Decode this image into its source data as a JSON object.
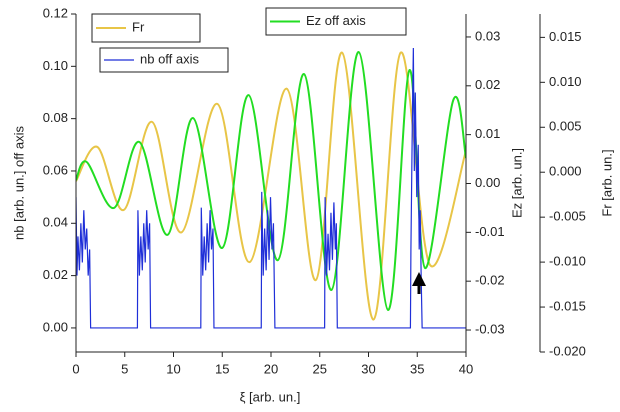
{
  "chart_data": {
    "type": "line",
    "xlabel": "ξ [arb. un.]",
    "ylabel": "nb [arb. un.] off axis",
    "y2label": "Ez [arb. un.]",
    "y3label": "Fr [arb. un.]",
    "xlim": [
      0,
      40
    ],
    "xticks": [
      0,
      5,
      10,
      15,
      20,
      25,
      30,
      35,
      40
    ],
    "ylim": [
      -0.0092,
      0.12
    ],
    "yticks": [
      {
        "value": 0,
        "label": "0.00"
      },
      0.02,
      0.04,
      0.06,
      0.08,
      {
        "value": 0.1,
        "label": "0.10"
      },
      0.12
    ],
    "y2lim": [
      -0.0345,
      0.0347
    ],
    "y2ticks": [
      -0.03,
      -0.02,
      -0.01,
      {
        "value": 0,
        "label": "0.00"
      },
      0.01,
      0.02,
      0.03
    ],
    "y3lim": [
      -0.02,
      0.0176
    ],
    "y3ticks": [
      {
        "value": -0.02,
        "label": "-0.020"
      },
      -0.015,
      {
        "value": -0.01,
        "label": "-0.010"
      },
      -0.005,
      {
        "value": 0,
        "label": "0.000"
      },
      0.005,
      {
        "value": 0.01,
        "label": "0.010"
      },
      0.015
    ],
    "series": [
      {
        "name": "Fr",
        "color": "#e8c547",
        "axis": "y3",
        "smooth": true,
        "x": [
          0,
          2.2,
          4.9,
          7.8,
          10.8,
          14.5,
          17.8,
          21.6,
          24.6,
          27.3,
          30.5,
          33.3,
          36.3,
          40
        ],
        "values": [
          -0.001,
          0.0028,
          -0.0042,
          0.0056,
          -0.0067,
          0.0076,
          -0.01,
          0.0093,
          -0.012,
          0.0133,
          -0.0164,
          0.0133,
          -0.0103,
          0.0024
        ]
      },
      {
        "name": "Ez off axis",
        "color": "#22dd22",
        "axis": "y2",
        "smooth": true,
        "x": [
          0,
          1.1,
          3.9,
          6.5,
          9.4,
          12.0,
          15.0,
          17.7,
          20.7,
          23.4,
          26.2,
          29.0,
          32.0,
          34.2,
          35.8,
          38.7,
          40
        ],
        "values": [
          0.0007,
          0.0044,
          -0.005,
          0.0085,
          -0.0105,
          0.0134,
          -0.0132,
          0.0181,
          -0.0157,
          0.0224,
          -0.0218,
          0.0269,
          -0.0259,
          0.0232,
          -0.0173,
          0.0171,
          0.0052
        ]
      },
      {
        "name": "nb off axis",
        "color": "#1f2fd8",
        "axis": "y",
        "x": [
          0,
          0.1,
          0.2,
          0.35,
          0.5,
          0.65,
          0.8,
          0.95,
          1.1,
          1.25,
          1.4,
          1.5,
          6.3,
          6.35,
          6.5,
          6.65,
          6.8,
          6.95,
          7.1,
          7.25,
          7.4,
          7.55,
          7.65,
          12.8,
          12.85,
          13.0,
          13.15,
          13.3,
          13.45,
          13.6,
          13.75,
          13.9,
          14.05,
          14.15,
          19.0,
          19.05,
          19.2,
          19.35,
          19.5,
          19.65,
          19.8,
          19.95,
          20.1,
          20.25,
          20.4,
          25.5,
          25.55,
          25.7,
          25.85,
          26.0,
          26.15,
          26.3,
          26.45,
          26.6,
          26.7,
          26.8,
          34.3,
          34.35,
          34.5,
          34.6,
          34.7,
          34.8,
          34.95,
          35.1,
          35.2,
          35.3,
          35.4,
          35.5,
          40
        ],
        "values": [
          0.05,
          0.02,
          0.035,
          0.022,
          0.04,
          0.025,
          0.045,
          0.03,
          0.038,
          0.02,
          0.03,
          0,
          0,
          0.045,
          0.02,
          0.035,
          0.022,
          0.04,
          0.025,
          0.045,
          0.03,
          0.04,
          0,
          0,
          0.046,
          0.02,
          0.035,
          0.022,
          0.04,
          0.025,
          0.045,
          0.03,
          0.038,
          0,
          0,
          0.052,
          0.02,
          0.038,
          0.022,
          0.045,
          0.026,
          0.05,
          0.03,
          0.04,
          0,
          0,
          0.05,
          0.02,
          0.036,
          0.022,
          0.044,
          0.026,
          0.048,
          0.03,
          0.04,
          0,
          0,
          0.03,
          0.08,
          0.107,
          0.06,
          0.09,
          0.05,
          0.07,
          0.03,
          0.045,
          0.02,
          0,
          0
        ]
      }
    ]
  }
}
